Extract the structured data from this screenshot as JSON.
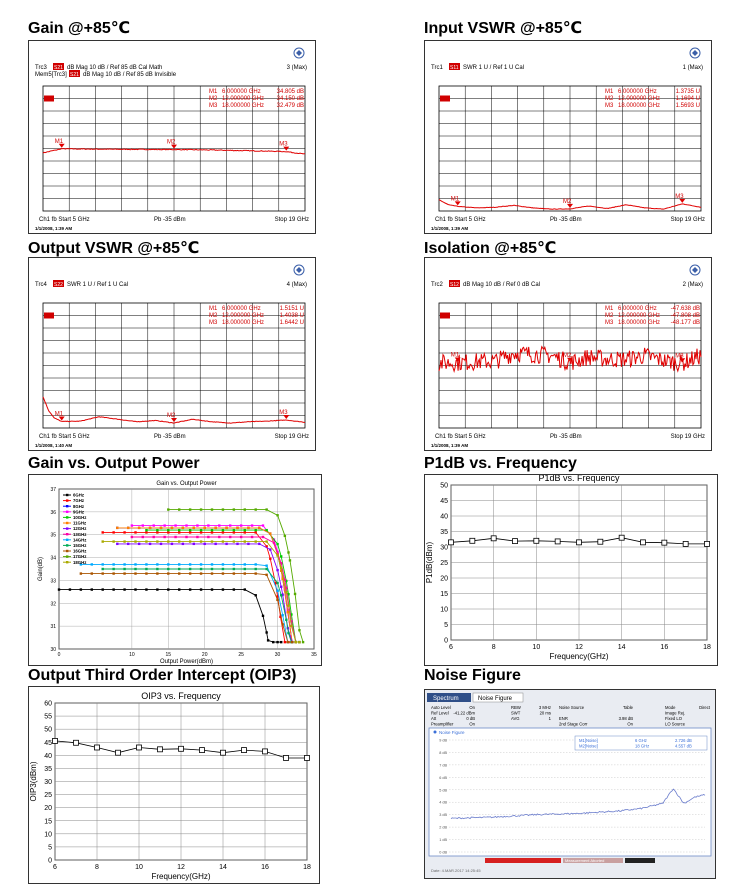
{
  "sections": {
    "gain_85": "Gain @+85℃",
    "input_vswr": "Input VSWR @+85℃",
    "output_vswr": "Output VSWR @+85℃",
    "isolation": "Isolation @+85℃",
    "gain_vs_pout": "Gain vs. Output Power",
    "p1db_vs_freq": "P1dB vs. Frequency",
    "oip3": "Output Third Order Intercept (OIP3)",
    "noise_figure": "Noise Figure"
  },
  "vna": {
    "gain": {
      "hdr1": "Trc3",
      "badge": "S21",
      "hdr_rest": "dB Mag   10 dB /  Ref 85 dB     Cal Math",
      "hdr2": "Mem5[Trc3]",
      "hdr2_rest": "dB Mag   10 dB /  Ref 85 dB     Invisible",
      "trace_id": "3 (Max)",
      "markers": [
        {
          "name": "M1",
          "freq": "6.000000 GHz",
          "val": "34.805 dB"
        },
        {
          "name": "M2",
          "freq": "12.000000 GHz",
          "val": "34.150 dB"
        },
        {
          "name": "M3",
          "freq": "18.000000 GHz",
          "val": "32.479 dB"
        }
      ],
      "footer_left": "Ch1  fb  Start  5 GHz",
      "footer_mid": "Pb   -35 dBm",
      "footer_right": "Stop  19 GHz",
      "date": "1/1/2008, 1:39 AM"
    },
    "input_vswr": {
      "hdr1": "Trc1",
      "badge": "S11",
      "hdr_rest": "SWR  1 U /  Ref 1 U     Cal",
      "trace_id": "1 (Max)",
      "markers": [
        {
          "name": "M1",
          "freq": "6.000000 GHz",
          "val": "1.3735 U"
        },
        {
          "name": "M2",
          "freq": "12.000000 GHz",
          "val": "1.1694 U"
        },
        {
          "name": "M3",
          "freq": "18.000000 GHz",
          "val": "1.5693 U"
        }
      ],
      "footer_left": "Ch1  fb  Start  5 GHz",
      "footer_mid": "Pb   -35 dBm",
      "footer_right": "Stop  19 GHz",
      "date": "1/1/2008, 1:39 AM"
    },
    "output_vswr": {
      "hdr1": "Trc4",
      "badge": "S22",
      "hdr_rest": "SWR  1 U /  Ref 1 U     Cal",
      "trace_id": "4 (Max)",
      "markers": [
        {
          "name": "M1",
          "freq": "6.000000 GHz",
          "val": "1.5151 U"
        },
        {
          "name": "M2",
          "freq": "12.000000 GHz",
          "val": "1.4038 U"
        },
        {
          "name": "M3",
          "freq": "18.000000 GHz",
          "val": "1.6442 U"
        }
      ],
      "footer_left": "Ch1  fb  Start  5 GHz",
      "footer_mid": "Pb   -35 dBm",
      "footer_right": "Stop  19 GHz",
      "date": "1/1/2008, 1:40 AM"
    },
    "isolation": {
      "hdr1": "Trc2",
      "badge": "S12",
      "hdr_rest": "dB Mag   10 dB /  Ref 0 dB     Cal",
      "trace_id": "2 (Max)",
      "markers": [
        {
          "name": "M1",
          "freq": "6.000000 GHz",
          "val": "-47.638 dB"
        },
        {
          "name": "M2",
          "freq": "12.000000 GHz",
          "val": "-47.808 dB"
        },
        {
          "name": "M3",
          "freq": "18.000000 GHz",
          "val": "-48.177 dB"
        }
      ],
      "footer_left": "Ch1  fb  Start  5 GHz",
      "footer_mid": "Pb   -35 dBm",
      "footer_right": "Stop  19 GHz",
      "date": "1/1/2008, 1:39 AM"
    }
  },
  "nf_ui": {
    "tab1": "Spectrum",
    "tab2": "Noise Figure",
    "settings": [
      [
        "Auto Level",
        "On",
        "RBW",
        "3 MHz",
        "Noise Source",
        "Table",
        "Mode",
        "Direct"
      ],
      [
        "Ref Level",
        "-41.22 dBm",
        "SWT",
        "20 ms",
        "",
        "",
        "Image Rej.",
        ""
      ],
      [
        "Att",
        "0 dB",
        "AVG",
        "1",
        "ENR",
        "3.98 dB",
        "Fixed LO",
        ""
      ],
      [
        "Preamplifier",
        "On",
        "",
        "",
        "2nd Stage Corr",
        "On",
        "LO Source",
        ""
      ]
    ],
    "trace_label": "Noise Figure",
    "markers": [
      {
        "name": "M1[Noise]",
        "freq": "6 GHz",
        "val": "2.726 dB"
      },
      {
        "name": "M2[Noise]",
        "freq": "18 GHz",
        "val": "4.557 dB"
      }
    ],
    "y_ticks": [
      "9 dB",
      "8 dB",
      "7 dB",
      "6 dB",
      "5 dB",
      "4 dB",
      "3 dB",
      "2 dB",
      "1 dB",
      "0 dB"
    ],
    "status_bar": "Measurement Aborted",
    "footer_text": "Date: 4.MAR.2017  14:25:45"
  },
  "chart_data": [
    {
      "type": "line",
      "id": "gain_85",
      "x": [
        5,
        6,
        7,
        8,
        9,
        10,
        11,
        12,
        13,
        14,
        15,
        16,
        17,
        18,
        19
      ],
      "series": [
        {
          "values": [
            31.5,
            34.8,
            34.6,
            34.5,
            34.4,
            34.3,
            34.2,
            34.15,
            34.0,
            33.8,
            33.5,
            33.2,
            32.9,
            32.5,
            30.5
          ]
        }
      ],
      "ylim": [
        -15,
        85
      ],
      "xlim": [
        5,
        19
      ]
    },
    {
      "type": "line",
      "id": "input_vswr",
      "x": [
        5,
        5.5,
        6,
        7,
        8,
        9,
        10,
        11,
        12,
        13,
        14,
        15,
        16,
        17,
        18,
        19
      ],
      "series": [
        {
          "values": [
            1.9,
            1.5,
            1.37,
            1.25,
            1.3,
            1.45,
            1.25,
            1.15,
            1.17,
            1.4,
            1.2,
            1.5,
            1.25,
            1.15,
            1.57,
            1.3
          ]
        }
      ],
      "ylim": [
        1,
        11
      ],
      "xlim": [
        5,
        19
      ]
    },
    {
      "type": "line",
      "id": "output_vswr",
      "x": [
        5,
        5.3,
        5.6,
        6,
        7,
        8,
        9,
        10,
        11,
        12,
        13,
        14,
        15,
        16,
        17,
        18,
        19
      ],
      "series": [
        {
          "values": [
            3.5,
            2.4,
            1.8,
            1.52,
            1.55,
            1.9,
            1.7,
            1.5,
            1.6,
            1.4,
            1.7,
            1.5,
            1.4,
            1.5,
            1.55,
            1.64,
            1.45
          ]
        }
      ],
      "ylim": [
        1,
        11
      ],
      "xlim": [
        5,
        19
      ]
    },
    {
      "type": "line",
      "id": "isolation",
      "x": [
        5,
        6,
        7,
        8,
        9,
        10,
        11,
        12,
        13,
        14,
        15,
        16,
        17,
        18,
        19
      ],
      "series": [
        {
          "values": [
            -48,
            -47.6,
            -47,
            -46.5,
            -40,
            -41,
            -42,
            -47.8,
            -43,
            -45,
            -45,
            -42,
            -46,
            -48.2,
            -42
          ]
        }
      ],
      "ylim": [
        -100,
        0
      ],
      "xlim": [
        5,
        19
      ]
    },
    {
      "type": "line",
      "id": "gain_vs_pout",
      "title": "Gain vs. Output Power",
      "xlabel": "Output Power(dBm)",
      "ylabel": "Gain(dB)",
      "xlim": [
        0,
        35
      ],
      "ylim": [
        30,
        37
      ],
      "x_ticks": [
        0,
        10,
        15,
        20,
        25,
        30,
        35
      ],
      "y_ticks": [
        30,
        31,
        32,
        33,
        34,
        35,
        36,
        37
      ],
      "legend_position": "top-left",
      "series": [
        {
          "name": "6GHz",
          "color": "#000000",
          "plateau": 32.6,
          "sat": 29.0,
          "start": 0
        },
        {
          "name": "7GHz",
          "color": "#ff0000",
          "plateau": 35.1,
          "sat": 30.0,
          "start": 6
        },
        {
          "name": "8GHz",
          "color": "#0000ff",
          "plateau": 35.3,
          "sat": 31.0,
          "start": 8
        },
        {
          "name": "9GHz",
          "color": "#ff00ff",
          "plateau": 35.4,
          "sat": 31.0,
          "start": 10
        },
        {
          "name": "10GHz",
          "color": "#00cc00",
          "plateau": 35.2,
          "sat": 31.5,
          "start": 12
        },
        {
          "name": "11GHz",
          "color": "#ff8000",
          "plateau": 35.3,
          "sat": 31.0,
          "start": 8
        },
        {
          "name": "12GHz",
          "color": "#8000ff",
          "plateau": 34.6,
          "sat": 31.0,
          "start": 8
        },
        {
          "name": "13GHz",
          "color": "#ff00aa",
          "plateau": 34.9,
          "sat": 31.5,
          "start": 10
        },
        {
          "name": "14GHz",
          "color": "#00aaff",
          "plateau": 33.7,
          "sat": 31.0,
          "start": 3
        },
        {
          "name": "15GHz",
          "color": "#00aa55",
          "plateau": 33.5,
          "sat": 31.5,
          "start": 6
        },
        {
          "name": "16GHz",
          "color": "#aa5500",
          "plateau": 33.3,
          "sat": 31.0,
          "start": 3
        },
        {
          "name": "17GHz",
          "color": "#55aa00",
          "plateau": 36.1,
          "sat": 32.0,
          "start": 15
        },
        {
          "name": "18GHz",
          "color": "#aaaa00",
          "plateau": 34.7,
          "sat": 31.5,
          "start": 6
        }
      ]
    },
    {
      "type": "line",
      "id": "p1db_vs_freq",
      "title": "P1dB vs. Frequency",
      "xlabel": "Frequency(GHz)",
      "ylabel": "P1dB(dBm)",
      "xlim": [
        6,
        18
      ],
      "ylim": [
        0,
        50
      ],
      "x_ticks": [
        6,
        8,
        10,
        12,
        14,
        16,
        18
      ],
      "y_ticks": [
        0,
        5,
        10,
        15,
        20,
        25,
        30,
        35,
        40,
        45,
        50
      ],
      "x": [
        6,
        7,
        8,
        9,
        10,
        11,
        12,
        13,
        14,
        15,
        16,
        17,
        18
      ],
      "series": [
        {
          "values": [
            31.5,
            32.0,
            32.8,
            31.9,
            32.0,
            31.8,
            31.5,
            31.7,
            33.0,
            31.5,
            31.4,
            31.0,
            31.0
          ]
        }
      ]
    },
    {
      "type": "line",
      "id": "oip3",
      "title": "OIP3 vs. Frequency",
      "xlabel": "Frequency(GHz)",
      "ylabel": "OIP3(dBm)",
      "xlim": [
        6,
        18
      ],
      "ylim": [
        0,
        60
      ],
      "x_ticks": [
        6,
        8,
        10,
        12,
        14,
        16,
        18
      ],
      "y_ticks": [
        0,
        5,
        10,
        15,
        20,
        25,
        30,
        35,
        40,
        45,
        50,
        55,
        60
      ],
      "x": [
        6,
        7,
        8,
        9,
        10,
        11,
        12,
        13,
        14,
        15,
        16,
        17,
        18
      ],
      "series": [
        {
          "values": [
            45.5,
            44.8,
            43.0,
            41.0,
            43.0,
            42.3,
            42.5,
            42.0,
            41.0,
            42.0,
            41.5,
            39.0,
            39.0
          ]
        }
      ]
    },
    {
      "type": "line",
      "id": "noise_figure",
      "x": [
        6,
        8,
        10,
        12,
        14,
        15,
        16,
        16.5,
        17,
        17.5,
        18
      ],
      "series": [
        {
          "values": [
            2.7,
            2.8,
            3.0,
            3.1,
            3.3,
            3.5,
            3.9,
            5.1,
            3.9,
            4.4,
            4.6
          ]
        }
      ],
      "ylim": [
        0,
        10
      ],
      "xlim": [
        6,
        18
      ]
    }
  ]
}
